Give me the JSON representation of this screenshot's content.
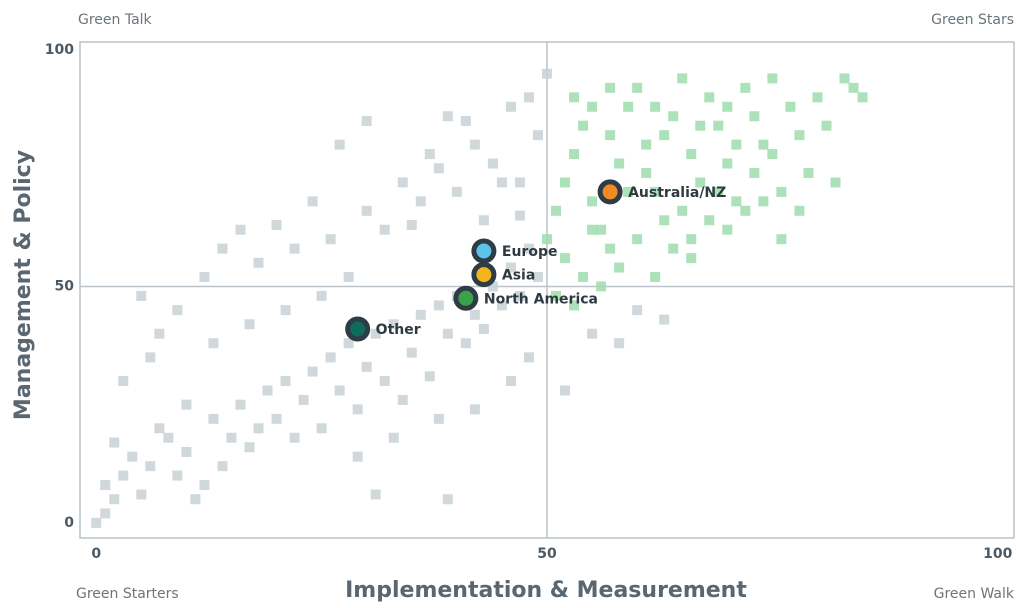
{
  "chart_data": {
    "type": "scatter",
    "xlabel": "Implementation & Measurement",
    "ylabel": "Management & Policy",
    "quadrant_labels": {
      "top_left": "Green Talk",
      "top_right": "Green Stars",
      "bottom_left": "Green Starters",
      "bottom_right": "Green Walk"
    },
    "xlim": [
      -1.8,
      101.8
    ],
    "ylim": [
      -3.2,
      101.7
    ],
    "xticks": [
      0,
      50,
      100
    ],
    "yticks": [
      0,
      50,
      100
    ],
    "dividers": {
      "x": 50,
      "y": 50
    },
    "series": [
      {
        "color": "#c8d1d6",
        "x": [
          0,
          1,
          2,
          1,
          3,
          4,
          2,
          5,
          6,
          7,
          8,
          9,
          10,
          11,
          12,
          13,
          14,
          15,
          16,
          17,
          18,
          19,
          20,
          21,
          22,
          23,
          24,
          25,
          26,
          27,
          28,
          29,
          30,
          31,
          32,
          33,
          34,
          35,
          36,
          37,
          38,
          39,
          40,
          41,
          42,
          43,
          44,
          45,
          46,
          47,
          48,
          49,
          5,
          7,
          9,
          12,
          14,
          16,
          18,
          20,
          22,
          24,
          26,
          28,
          30,
          32,
          34,
          36,
          38,
          40,
          42,
          44,
          46,
          48,
          49,
          50,
          37,
          39,
          41,
          45,
          47,
          3,
          6,
          10,
          13,
          17,
          21,
          25,
          29,
          33,
          38,
          42,
          46,
          48,
          52,
          55,
          58,
          60,
          63,
          31,
          39,
          27,
          30,
          35,
          43,
          47
        ],
        "y": [
          0,
          2,
          5,
          8,
          10,
          14,
          17,
          6,
          12,
          20,
          18,
          10,
          15,
          5,
          8,
          22,
          12,
          18,
          25,
          16,
          20,
          28,
          22,
          30,
          18,
          26,
          32,
          20,
          35,
          28,
          38,
          24,
          33,
          40,
          30,
          42,
          26,
          36,
          44,
          31,
          46,
          40,
          48,
          38,
          44,
          41,
          50,
          46,
          54,
          48,
          58,
          52,
          48,
          40,
          45,
          52,
          58,
          62,
          55,
          63,
          58,
          68,
          60,
          52,
          66,
          62,
          72,
          68,
          75,
          70,
          80,
          76,
          88,
          90,
          82,
          95,
          78,
          86,
          85,
          72,
          65,
          30,
          35,
          25,
          38,
          42,
          45,
          48,
          14,
          18,
          22,
          24,
          30,
          35,
          28,
          40,
          38,
          45,
          43,
          6,
          5,
          80,
          85,
          63,
          64,
          72
        ]
      },
      {
        "color": "#9fdcae",
        "x": [
          50,
          51,
          52,
          53,
          54,
          55,
          56,
          57,
          58,
          59,
          60,
          61,
          62,
          63,
          64,
          65,
          66,
          67,
          68,
          69,
          70,
          71,
          72,
          73,
          74,
          75,
          76,
          77,
          78,
          79,
          80,
          81,
          82,
          83,
          84,
          85,
          52,
          54,
          56,
          58,
          60,
          62,
          64,
          66,
          68,
          70,
          72,
          74,
          76,
          78,
          53,
          55,
          57,
          59,
          61,
          63,
          65,
          67,
          69,
          71,
          73,
          51,
          53,
          55,
          57,
          62,
          66,
          70,
          75
        ],
        "y": [
          60,
          66,
          72,
          78,
          84,
          68,
          62,
          58,
          76,
          88,
          92,
          80,
          70,
          64,
          86,
          94,
          78,
          72,
          90,
          84,
          76,
          68,
          92,
          86,
          80,
          94,
          70,
          88,
          82,
          74,
          90,
          84,
          72,
          94,
          92,
          90,
          56,
          52,
          50,
          54,
          60,
          52,
          58,
          56,
          64,
          62,
          66,
          68,
          60,
          66,
          90,
          88,
          92,
          70,
          74,
          82,
          66,
          84,
          70,
          80,
          74,
          48,
          46,
          62,
          82,
          88,
          60,
          88,
          78
        ]
      }
    ],
    "highlights": [
      {
        "label": "Australia/NZ",
        "color": "#f08a24",
        "x": 57,
        "y": 70
      },
      {
        "label": "Europe",
        "color": "#5bc4e8",
        "x": 43,
        "y": 57.5
      },
      {
        "label": "Asia",
        "color": "#f2b51d",
        "x": 43,
        "y": 52.5
      },
      {
        "label": "North America",
        "color": "#3aa34a",
        "x": 41,
        "y": 47.5
      },
      {
        "label": "Other",
        "color": "#0f6b5c",
        "x": 29,
        "y": 41
      }
    ]
  }
}
